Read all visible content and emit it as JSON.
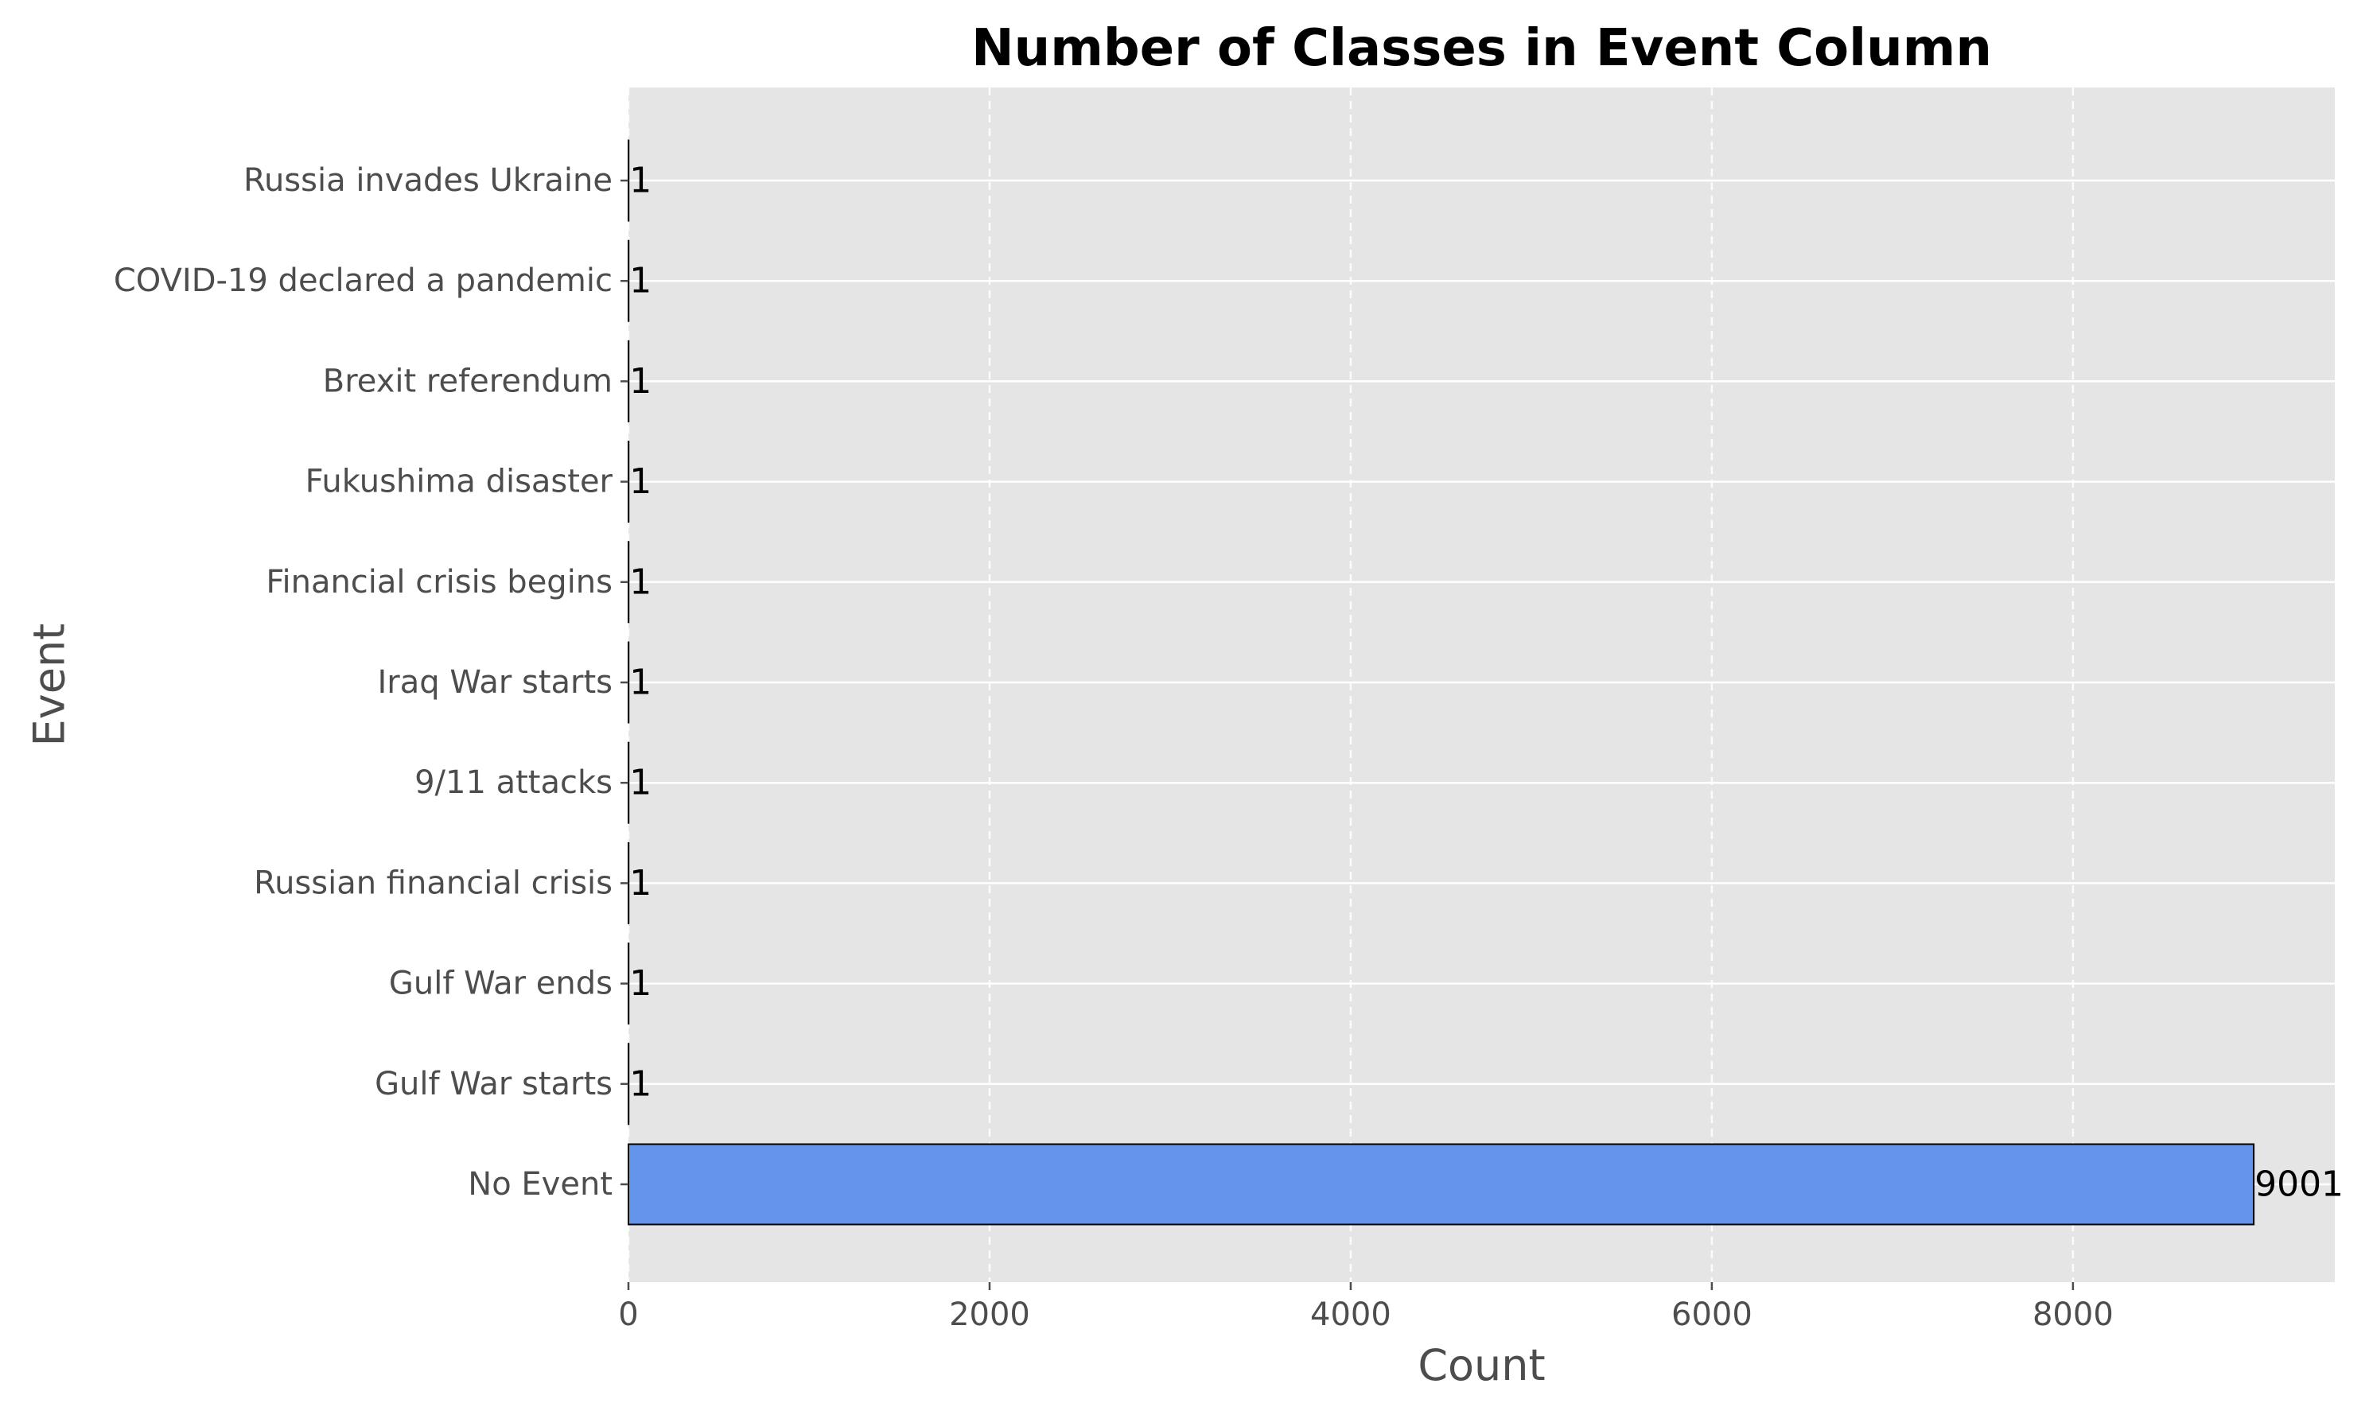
{
  "chart_data": {
    "type": "bar",
    "orientation": "horizontal",
    "title": "Number of Classes in Event Column",
    "xlabel": "Count",
    "ylabel": "Event",
    "categories": [
      "No Event",
      "Gulf War starts",
      "Gulf War ends",
      "Russian financial crisis",
      "9/11 attacks",
      "Iraq War starts",
      "Financial crisis begins",
      "Fukushima disaster",
      "Brexit referendum",
      "COVID-19 declared a pandemic",
      "Russia invades Ukraine"
    ],
    "values": [
      9001,
      1,
      1,
      1,
      1,
      1,
      1,
      1,
      1,
      1,
      1
    ],
    "data_labels": [
      "9001",
      "1",
      "1",
      "1",
      "1",
      "1",
      "1",
      "1",
      "1",
      "1",
      "1"
    ],
    "xlim": [
      0,
      9450
    ],
    "xticks": [
      0,
      2000,
      4000,
      6000,
      8000
    ],
    "xtick_labels": [
      "0",
      "2000",
      "4000",
      "6000",
      "8000"
    ],
    "grid": true,
    "colors": {
      "bar": "#6495ed",
      "bar_edge": "#000000",
      "plot_background": "#e5e5e5",
      "grid": "#ffffff",
      "text": "#4d4d4d",
      "title": "#000000"
    }
  }
}
